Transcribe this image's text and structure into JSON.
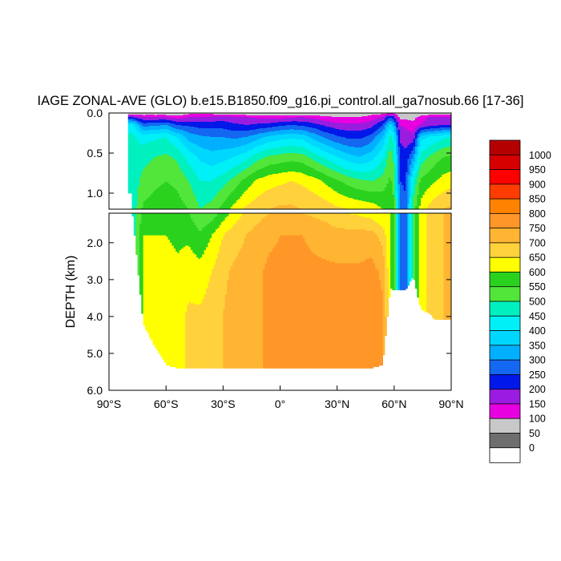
{
  "chart_data": {
    "type": "heatmap",
    "title": "IAGE ZONAL-AVE (GLO) b.e15.B1850.f09_g16.pi_control.all_ga7nosub.66 [17-36]",
    "ylabel": "DEPTH (km)",
    "xlabel": "",
    "xlim": [
      -90,
      90
    ],
    "x_ticks": [
      {
        "value": -90,
        "label": "90°S"
      },
      {
        "value": -60,
        "label": "60°S"
      },
      {
        "value": -30,
        "label": "30°S"
      },
      {
        "value": 0,
        "label": "0°"
      },
      {
        "value": 30,
        "label": "30°N"
      },
      {
        "value": 60,
        "label": "60°N"
      },
      {
        "value": 90,
        "label": "90°N"
      }
    ],
    "upper_panel": {
      "ylim": [
        0.0,
        1.2
      ],
      "y_ticks": [
        {
          "value": 0.0,
          "label": "0.0"
        },
        {
          "value": 0.5,
          "label": "0.5"
        },
        {
          "value": 1.0,
          "label": "1.0"
        }
      ]
    },
    "lower_panel": {
      "ylim": [
        1.2,
        6.0
      ],
      "y_ticks": [
        {
          "value": 2.0,
          "label": "2.0"
        },
        {
          "value": 3.0,
          "label": "3.0"
        },
        {
          "value": 4.0,
          "label": "4.0"
        },
        {
          "value": 5.0,
          "label": "5.0"
        },
        {
          "value": 6.0,
          "label": "6.0"
        }
      ]
    },
    "colorbar": {
      "levels": [
        0,
        50,
        100,
        150,
        200,
        250,
        300,
        350,
        400,
        450,
        500,
        550,
        600,
        650,
        700,
        750,
        800,
        850,
        900,
        950,
        1000
      ],
      "labels": [
        "0",
        "50",
        "100",
        "150",
        "200",
        "250",
        "300",
        "350",
        "400",
        "450",
        "500",
        "550",
        "600",
        "650",
        "700",
        "750",
        "800",
        "850",
        "900",
        "950",
        "1000"
      ],
      "colors": [
        "#ffffff",
        "#6e6e6e",
        "#c8c8c8",
        "#e800e0",
        "#9a1ce0",
        "#0018e8",
        "#1467f0",
        "#00b0ff",
        "#00d7ff",
        "#00f0f8",
        "#00f0c0",
        "#52e63a",
        "#2ad21e",
        "#ffff00",
        "#ffd23c",
        "#ffb432",
        "#ff9628",
        "#ff8200",
        "#ff3c00",
        "#ff0000",
        "#d70000",
        "#b40000"
      ]
    },
    "profiles": [
      {
        "lat": -78,
        "zb": 1.0,
        "age": [
          50,
          200,
          430,
          460
        ]
      },
      {
        "lat": -72,
        "zb": 4.2,
        "age": [
          50,
          150,
          280,
          430,
          480,
          520,
          560,
          600
        ]
      },
      {
        "lat": -66,
        "zb": 4.8,
        "age": [
          50,
          150,
          290,
          440,
          500,
          540,
          570,
          600,
          630
        ]
      },
      {
        "lat": -60,
        "zb": 5.3,
        "age": [
          50,
          150,
          300,
          450,
          510,
          550,
          580,
          600,
          620,
          640
        ]
      },
      {
        "lat": -54,
        "zb": 5.4,
        "age": [
          50,
          120,
          250,
          400,
          490,
          540,
          570,
          590,
          610,
          630
        ]
      },
      {
        "lat": -48,
        "zb": 5.4,
        "age": [
          80,
          150,
          240,
          330,
          430,
          500,
          550,
          590,
          630,
          660
        ]
      },
      {
        "lat": -42,
        "zb": 5.4,
        "age": [
          80,
          150,
          230,
          310,
          390,
          450,
          500,
          560,
          620,
          660
        ]
      },
      {
        "lat": -36,
        "zb": 5.4,
        "age": [
          80,
          160,
          230,
          300,
          370,
          450,
          520,
          600,
          650,
          680
        ]
      },
      {
        "lat": -30,
        "zb": 5.4,
        "age": [
          50,
          170,
          230,
          300,
          380,
          480,
          570,
          650,
          690,
          700
        ]
      },
      {
        "lat": -24,
        "zb": 5.4,
        "age": [
          50,
          160,
          210,
          290,
          400,
          520,
          620,
          680,
          710,
          720
        ]
      },
      {
        "lat": -18,
        "zb": 5.4,
        "age": [
          50,
          150,
          200,
          300,
          430,
          570,
          660,
          700,
          720,
          730
        ]
      },
      {
        "lat": -12,
        "zb": 5.4,
        "age": [
          50,
          140,
          210,
          330,
          480,
          610,
          680,
          720,
          740,
          740
        ]
      },
      {
        "lat": -6,
        "zb": 5.4,
        "age": [
          50,
          130,
          220,
          360,
          510,
          630,
          700,
          740,
          760,
          760
        ]
      },
      {
        "lat": 0,
        "zb": 5.4,
        "age": [
          50,
          130,
          240,
          380,
          520,
          640,
          710,
          750,
          760,
          760
        ]
      },
      {
        "lat": 6,
        "zb": 5.4,
        "age": [
          50,
          140,
          250,
          390,
          530,
          650,
          710,
          750,
          760,
          760
        ]
      },
      {
        "lat": 12,
        "zb": 5.4,
        "age": [
          50,
          150,
          240,
          380,
          520,
          640,
          700,
          750,
          760,
          760
        ]
      },
      {
        "lat": 18,
        "zb": 5.4,
        "age": [
          50,
          130,
          220,
          330,
          480,
          620,
          690,
          740,
          760,
          760
        ]
      },
      {
        "lat": 24,
        "zb": 5.4,
        "age": [
          50,
          110,
          190,
          290,
          440,
          590,
          680,
          730,
          760,
          760
        ]
      },
      {
        "lat": 30,
        "zb": 5.4,
        "age": [
          50,
          100,
          170,
          260,
          400,
          560,
          660,
          720,
          760,
          760
        ]
      },
      {
        "lat": 36,
        "zb": 5.4,
        "age": [
          50,
          100,
          160,
          240,
          370,
          530,
          650,
          720,
          760,
          760
        ]
      },
      {
        "lat": 42,
        "zb": 5.4,
        "age": [
          50,
          100,
          160,
          240,
          350,
          510,
          640,
          720,
          760,
          760
        ]
      },
      {
        "lat": 48,
        "zb": 5.4,
        "age": [
          80,
          120,
          180,
          270,
          380,
          500,
          630,
          720,
          770,
          770
        ]
      },
      {
        "lat": 54,
        "zb": 5.3,
        "age": [
          80,
          150,
          250,
          350,
          440,
          520,
          600,
          680,
          740,
          760
        ]
      },
      {
        "lat": 58,
        "zb": 3.2,
        "age": [
          100,
          250,
          380,
          470,
          530,
          560,
          600
        ]
      },
      {
        "lat": 60,
        "zb": 3.3,
        "age": [
          90,
          200,
          320,
          430,
          480,
          520,
          560
        ]
      },
      {
        "lat": 63,
        "zb": 3.3,
        "age": [
          50,
          80,
          150,
          190,
          230,
          250,
          300
        ]
      },
      {
        "lat": 66,
        "zb": 3.3,
        "age": [
          50,
          80,
          140,
          180,
          210,
          240,
          260
        ]
      },
      {
        "lat": 70,
        "zb": 2.9,
        "age": [
          50,
          80,
          120,
          160,
          300,
          450,
          520
        ]
      },
      {
        "lat": 74,
        "zb": 3.8,
        "age": [
          50,
          120,
          150,
          380,
          470,
          560,
          620
        ]
      },
      {
        "lat": 78,
        "zb": 3.9,
        "age": [
          50,
          150,
          180,
          400,
          500,
          580,
          660
        ]
      },
      {
        "lat": 82,
        "zb": 4.1,
        "age": [
          50,
          150,
          190,
          420,
          530,
          600,
          690
        ]
      },
      {
        "lat": 86,
        "zb": 4.1,
        "age": [
          60,
          150,
          200,
          440,
          550,
          620,
          700
        ]
      },
      {
        "lat": 90,
        "zb": 4.1,
        "age": [
          60,
          150,
          200,
          450,
          560,
          630,
          710
        ]
      }
    ],
    "profile_depths": [
      0.0,
      0.05,
      0.15,
      0.3,
      0.55,
      0.85,
      1.2,
      1.8,
      2.8,
      4.0,
      5.4
    ],
    "grid": false
  }
}
